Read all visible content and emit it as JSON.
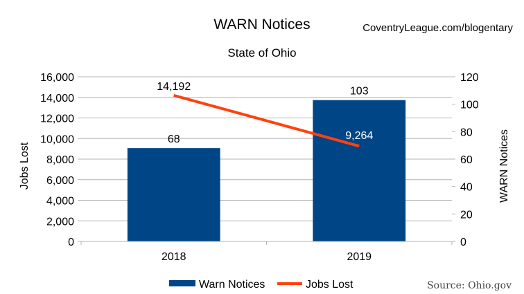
{
  "header": {
    "title": "WARN Notices",
    "subtitle": "State of Ohio",
    "watermark": "CoventryLeague.com/blogentary",
    "source": "Source: Ohio.gov"
  },
  "chart_data": {
    "type": "bar",
    "title": "WARN Notices",
    "subtitle": "State of Ohio",
    "categories": [
      "2018",
      "2019"
    ],
    "ylabel_left": "Jobs Lost",
    "ylabel_right": "WARN Notices",
    "ylim_left": [
      0,
      16000
    ],
    "ylim_right": [
      0,
      120
    ],
    "yticks_left": [
      "0",
      "2,000",
      "4,000",
      "6,000",
      "8,000",
      "10,000",
      "12,000",
      "14,000",
      "16,000"
    ],
    "yticks_right": [
      "0",
      "20",
      "40",
      "60",
      "80",
      "100",
      "120"
    ],
    "grid": true,
    "legend_position": "bottom",
    "series": [
      {
        "name": "Warn Notices",
        "type": "bar",
        "axis": "right",
        "color": "#004586",
        "values": [
          68,
          103
        ],
        "labels": [
          "68",
          "103"
        ]
      },
      {
        "name": "Jobs Lost",
        "type": "line",
        "axis": "left",
        "color": "#ff420e",
        "values": [
          14192,
          9264
        ],
        "labels": [
          "14,192",
          "9,264"
        ]
      }
    ]
  }
}
